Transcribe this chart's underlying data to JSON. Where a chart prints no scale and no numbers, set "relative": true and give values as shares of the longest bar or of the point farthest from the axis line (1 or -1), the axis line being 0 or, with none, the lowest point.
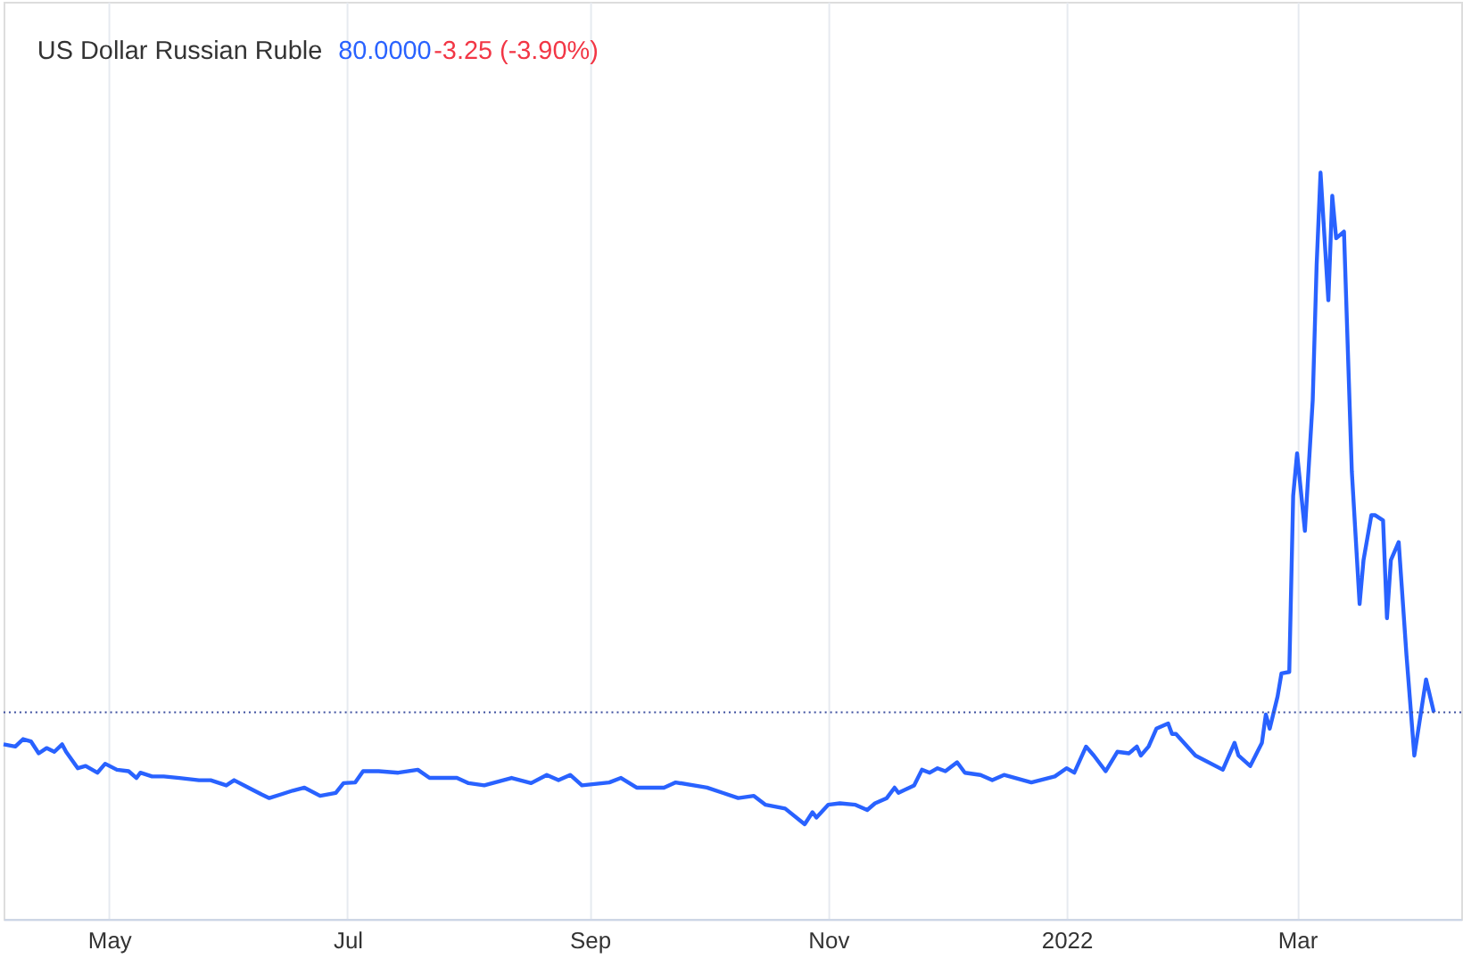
{
  "chart_data": {
    "type": "line",
    "title": "US Dollar Russian Ruble",
    "annotations": [
      "80.0000",
      "-3.25 (-3.90%)"
    ],
    "relative": true,
    "grid": true,
    "xlim": [
      "2021-04-04",
      "2022-04-12"
    ],
    "xticks": [
      {
        "value": "2021-05-01",
        "label": "May"
      },
      {
        "value": "2021-07-01",
        "label": "Jul"
      },
      {
        "value": "2021-09-01",
        "label": "Sep"
      },
      {
        "value": "2021-11-01",
        "label": "Nov"
      },
      {
        "value": "2022-01-01",
        "label": "2022"
      },
      {
        "value": "2022-03-01",
        "label": "Mar"
      }
    ],
    "ref_lines": [
      {
        "axis": "y",
        "value": 0.277,
        "color": "#3d4f9f",
        "line_style": "dotted"
      }
    ],
    "x": [
      "2021-04-04",
      "2021-04-07",
      "2021-04-09",
      "2021-04-11",
      "2021-04-13",
      "2021-04-15",
      "2021-04-17",
      "2021-04-19",
      "2021-04-20",
      "2021-04-23",
      "2021-04-25",
      "2021-04-28",
      "2021-04-30",
      "2021-05-03",
      "2021-05-06",
      "2021-05-08",
      "2021-05-09",
      "2021-05-12",
      "2021-05-15",
      "2021-05-19",
      "2021-05-24",
      "2021-05-27",
      "2021-05-31",
      "2021-06-02",
      "2021-06-06",
      "2021-06-09",
      "2021-06-11",
      "2021-06-14",
      "2021-06-17",
      "2021-06-20",
      "2021-06-24",
      "2021-06-28",
      "2021-06-30",
      "2021-07-03",
      "2021-07-05",
      "2021-07-09",
      "2021-07-14",
      "2021-07-19",
      "2021-07-22",
      "2021-07-29",
      "2021-08-01",
      "2021-08-05",
      "2021-08-12",
      "2021-08-17",
      "2021-08-21",
      "2021-08-24",
      "2021-08-27",
      "2021-08-30",
      "2021-09-06",
      "2021-09-09",
      "2021-09-13",
      "2021-09-20",
      "2021-09-23",
      "2021-10-01",
      "2021-10-05",
      "2021-10-09",
      "2021-10-13",
      "2021-10-16",
      "2021-10-21",
      "2021-10-26",
      "2021-10-28",
      "2021-10-29",
      "2021-11-01",
      "2021-11-04",
      "2021-11-08",
      "2021-11-11",
      "2021-11-13",
      "2021-11-16",
      "2021-11-18",
      "2021-11-19",
      "2021-11-23",
      "2021-11-25",
      "2021-11-27",
      "2021-11-29",
      "2021-12-01",
      "2021-12-04",
      "2021-12-06",
      "2021-12-10",
      "2021-12-13",
      "2021-12-16",
      "2021-12-23",
      "2021-12-29",
      "2022-01-01",
      "2022-01-03",
      "2022-01-06",
      "2022-01-08",
      "2022-01-11",
      "2022-01-14",
      "2022-01-17",
      "2022-01-19",
      "2022-01-20",
      "2022-01-22",
      "2022-01-24",
      "2022-01-27",
      "2022-01-28",
      "2022-01-29",
      "2022-02-03",
      "2022-02-10",
      "2022-02-13",
      "2022-02-14",
      "2022-02-17",
      "2022-02-20",
      "2022-02-21",
      "2022-02-22",
      "2022-02-24",
      "2022-02-25",
      "2022-02-27",
      "2022-02-28",
      "2022-03-01",
      "2022-03-03",
      "2022-03-05",
      "2022-03-06",
      "2022-03-07",
      "2022-03-09",
      "2022-03-10",
      "2022-03-11",
      "2022-03-13",
      "2022-03-15",
      "2022-03-17",
      "2022-03-18",
      "2022-03-20",
      "2022-03-21",
      "2022-03-23",
      "2022-03-24",
      "2022-03-25",
      "2022-03-27",
      "2022-03-29",
      "2022-03-31",
      "2022-04-03",
      "2022-04-05"
    ],
    "series": [
      {
        "color": "#2962ff",
        "values": [
          0.234,
          0.231,
          0.241,
          0.238,
          0.222,
          0.229,
          0.224,
          0.234,
          0.224,
          0.202,
          0.205,
          0.196,
          0.208,
          0.2,
          0.198,
          0.189,
          0.196,
          0.191,
          0.191,
          0.189,
          0.186,
          0.186,
          0.179,
          0.186,
          0.175,
          0.167,
          0.162,
          0.167,
          0.172,
          0.176,
          0.165,
          0.169,
          0.182,
          0.183,
          0.198,
          0.198,
          0.196,
          0.2,
          0.189,
          0.189,
          0.182,
          0.179,
          0.189,
          0.182,
          0.193,
          0.186,
          0.193,
          0.179,
          0.183,
          0.189,
          0.176,
          0.176,
          0.183,
          0.176,
          0.169,
          0.162,
          0.165,
          0.153,
          0.148,
          0.127,
          0.143,
          0.136,
          0.153,
          0.155,
          0.153,
          0.146,
          0.155,
          0.162,
          0.176,
          0.169,
          0.179,
          0.2,
          0.196,
          0.202,
          0.198,
          0.21,
          0.196,
          0.193,
          0.186,
          0.193,
          0.183,
          0.191,
          0.202,
          0.196,
          0.231,
          0.219,
          0.198,
          0.224,
          0.222,
          0.231,
          0.219,
          0.231,
          0.255,
          0.262,
          0.248,
          0.248,
          0.219,
          0.2,
          0.236,
          0.219,
          0.205,
          0.236,
          0.274,
          0.255,
          0.298,
          0.329,
          0.331,
          0.567,
          0.624,
          0.52,
          0.695,
          0.876,
          1.0,
          0.829,
          0.969,
          0.912,
          0.921,
          0.6,
          0.422,
          0.481,
          0.541,
          0.541,
          0.534,
          0.403,
          0.481,
          0.505,
          0.353,
          0.219,
          0.321,
          0.277
        ]
      }
    ]
  }
}
